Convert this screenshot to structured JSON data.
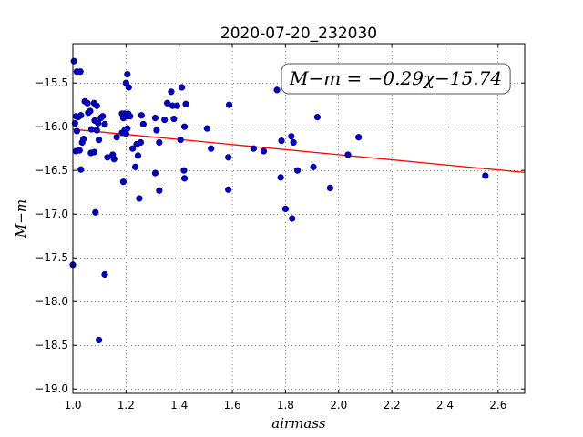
{
  "chart_data": {
    "type": "scatter",
    "title": "2020-07-20_232030",
    "xlabel": "airmass",
    "ylabel": "M−m",
    "xlim": [
      1.0,
      2.7
    ],
    "ylim": [
      -19.05,
      -15.05
    ],
    "y_inverted": false,
    "grid": true,
    "x_ticks": [
      "1.0",
      "1.2",
      "1.4",
      "1.6",
      "1.8",
      "2.0",
      "2.2",
      "2.4",
      "2.6"
    ],
    "x_tick_values": [
      1.0,
      1.2,
      1.4,
      1.6,
      1.8,
      2.0,
      2.2,
      2.4,
      2.6
    ],
    "y_ticks": [
      "−15.5",
      "−16.0",
      "−16.5",
      "−17.0",
      "−17.5",
      "−18.0",
      "−18.5",
      "−19.0"
    ],
    "y_tick_values": [
      -15.5,
      -16.0,
      -16.5,
      -17.0,
      -17.5,
      -18.0,
      -18.5,
      -19.0
    ],
    "annotation": "M−m = −0.29χ−15.74",
    "fit": {
      "slope": -0.29,
      "intercept": -15.74,
      "color": "#ff0000"
    },
    "point_color": "#0000cc",
    "points": [
      [
        1.004,
        -15.25
      ],
      [
        1.015,
        -15.37
      ],
      [
        1.028,
        -15.37
      ],
      [
        1.012,
        -15.88
      ],
      [
        1.02,
        -15.89
      ],
      [
        1.03,
        -15.87
      ],
      [
        1.008,
        -15.96
      ],
      [
        1.015,
        -16.05
      ],
      [
        1.012,
        -16.28
      ],
      [
        1.025,
        -16.27
      ],
      [
        1.035,
        -16.18
      ],
      [
        1.04,
        -16.14
      ],
      [
        1.03,
        -16.49
      ],
      [
        1.0,
        -17.58
      ],
      [
        1.045,
        -15.71
      ],
      [
        1.055,
        -15.73
      ],
      [
        1.058,
        -15.84
      ],
      [
        1.065,
        -15.82
      ],
      [
        1.07,
        -16.03
      ],
      [
        1.068,
        -16.3
      ],
      [
        1.08,
        -16.29
      ],
      [
        1.08,
        -15.73
      ],
      [
        1.09,
        -15.76
      ],
      [
        1.082,
        -15.93
      ],
      [
        1.095,
        -15.96
      ],
      [
        1.09,
        -16.04
      ],
      [
        1.098,
        -16.15
      ],
      [
        1.105,
        -15.9
      ],
      [
        1.112,
        -15.88
      ],
      [
        1.12,
        -15.97
      ],
      [
        1.085,
        -16.98
      ],
      [
        1.12,
        -17.69
      ],
      [
        1.098,
        -18.44
      ],
      [
        1.13,
        -16.35
      ],
      [
        1.15,
        -16.32
      ],
      [
        1.155,
        -16.37
      ],
      [
        1.165,
        -16.12
      ],
      [
        1.185,
        -15.85
      ],
      [
        1.19,
        -15.9
      ],
      [
        1.195,
        -15.85
      ],
      [
        1.2,
        -15.88
      ],
      [
        1.205,
        -16.02
      ],
      [
        1.185,
        -16.07
      ],
      [
        1.195,
        -16.04
      ],
      [
        1.2,
        -16.08
      ],
      [
        1.205,
        -15.4
      ],
      [
        1.2,
        -15.5
      ],
      [
        1.21,
        -15.55
      ],
      [
        1.208,
        -15.85
      ],
      [
        1.215,
        -15.88
      ],
      [
        1.19,
        -16.63
      ],
      [
        1.225,
        -16.25
      ],
      [
        1.235,
        -16.46
      ],
      [
        1.24,
        -16.2
      ],
      [
        1.245,
        -16.33
      ],
      [
        1.255,
        -16.18
      ],
      [
        1.25,
        -16.82
      ],
      [
        1.258,
        -15.87
      ],
      [
        1.265,
        -15.97
      ],
      [
        1.31,
        -15.9
      ],
      [
        1.315,
        -16.04
      ],
      [
        1.325,
        -16.18
      ],
      [
        1.31,
        -16.53
      ],
      [
        1.325,
        -16.73
      ],
      [
        1.345,
        -15.92
      ],
      [
        1.355,
        -15.73
      ],
      [
        1.37,
        -15.6
      ],
      [
        1.375,
        -15.76
      ],
      [
        1.38,
        -15.91
      ],
      [
        1.392,
        -15.76
      ],
      [
        1.41,
        -15.55
      ],
      [
        1.42,
        -16.0
      ],
      [
        1.425,
        -15.74
      ],
      [
        1.405,
        -16.15
      ],
      [
        1.418,
        -16.5
      ],
      [
        1.42,
        -16.59
      ],
      [
        1.505,
        -16.02
      ],
      [
        1.52,
        -16.25
      ],
      [
        1.588,
        -15.75
      ],
      [
        1.585,
        -16.35
      ],
      [
        1.585,
        -16.72
      ],
      [
        1.68,
        -16.25
      ],
      [
        1.718,
        -16.28
      ],
      [
        1.768,
        -15.58
      ],
      [
        1.785,
        -16.16
      ],
      [
        1.782,
        -16.58
      ],
      [
        1.8,
        -16.94
      ],
      [
        1.822,
        -16.11
      ],
      [
        1.83,
        -16.18
      ],
      [
        1.845,
        -16.5
      ],
      [
        1.825,
        -17.05
      ],
      [
        1.905,
        -16.46
      ],
      [
        1.92,
        -15.89
      ],
      [
        1.968,
        -16.7
      ],
      [
        2.035,
        -16.32
      ],
      [
        2.075,
        -16.12
      ],
      [
        2.552,
        -16.56
      ]
    ]
  }
}
